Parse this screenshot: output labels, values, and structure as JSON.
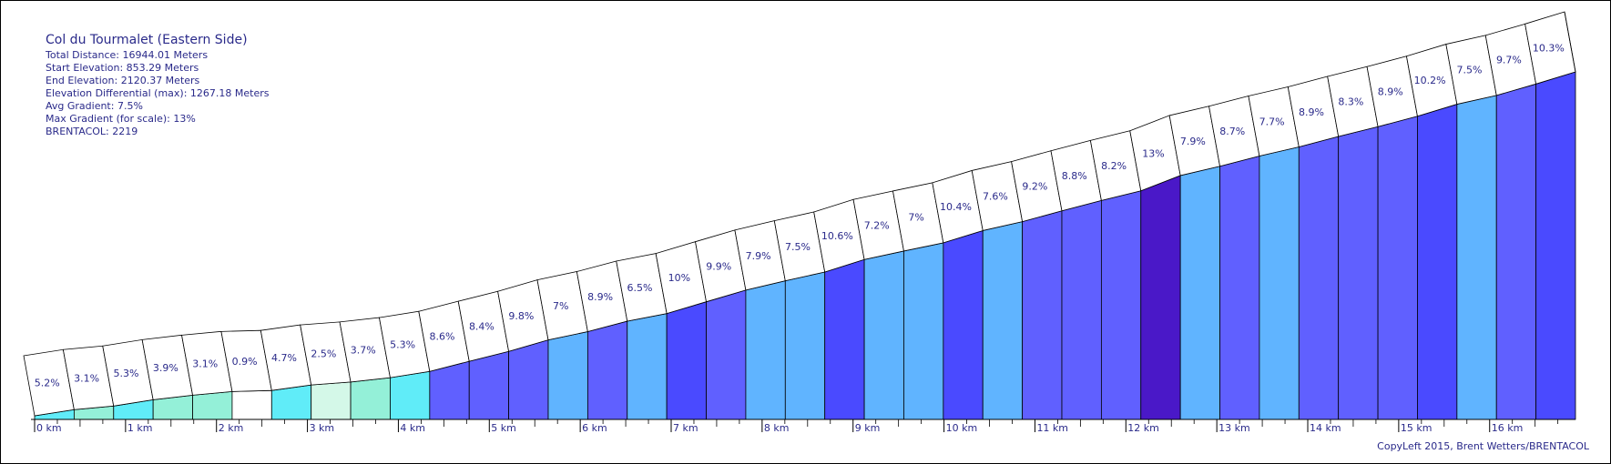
{
  "info": {
    "title": "Col du Tourmalet (Eastern Side)",
    "lines": [
      "Total Distance: 16944.01 Meters",
      "Start Elevation: 853.29 Meters",
      "End Elevation: 2120.37 Meters",
      "Elevation Differential (max): 1267.18 Meters",
      "Avg Gradient: 7.5%",
      "Max Gradient (for scale): 13%",
      "BRENTACOL: 2219"
    ]
  },
  "copyleft": "CopyLeft 2015, Brent Wetters/BRENTACOL",
  "chart_data": {
    "type": "area",
    "title": "Col du Tourmalet (Eastern Side)",
    "xlabel": "",
    "ylabel": "",
    "segment_length_km": 0.43,
    "total_distance_m": 16944.01,
    "start_elevation_m": 853.29,
    "end_elevation_m": 2120.37,
    "x_ticks": [
      "0 km",
      "1 km",
      "2 km",
      "3 km",
      "4 km",
      "5 km",
      "6 km",
      "7 km",
      "8 km",
      "9 km",
      "10 km",
      "11 km",
      "12 km",
      "13 km",
      "14 km",
      "15 km",
      "16 km"
    ],
    "gradients": [
      5.2,
      3.1,
      5.3,
      3.9,
      3.1,
      0.9,
      4.7,
      2.5,
      3.7,
      5.3,
      8.6,
      8.4,
      9.8,
      7,
      8.9,
      6.5,
      10,
      9.9,
      7.9,
      7.5,
      10.6,
      7.2,
      7,
      10.4,
      7.6,
      9.2,
      8.8,
      8.2,
      13,
      7.9,
      8.7,
      7.7,
      8.9,
      8.3,
      8.9,
      10.2,
      7.5,
      9.7,
      10.3
    ],
    "gradient_labels": [
      "5.2%",
      "3.1%",
      "5.3%",
      "3.9%",
      "3.1%",
      "0.9%",
      "4.7%",
      "2.5%",
      "3.7%",
      "5.3%",
      "8.6%",
      "8.4%",
      "9.8%",
      "7%",
      "8.9%",
      "6.5%",
      "10%",
      "9.9%",
      "7.9%",
      "7.5%",
      "10.6%",
      "7.2%",
      "7%",
      "10.4%",
      "7.6%",
      "9.2%",
      "8.8%",
      "8.2%",
      "13%",
      "7.9%",
      "8.7%",
      "7.7%",
      "8.9%",
      "8.3%",
      "8.9%",
      "10.2%",
      "7.5%",
      "9.7%",
      "10.3%"
    ],
    "color_scale": [
      {
        "max": 2,
        "color": "#ffffff"
      },
      {
        "max": 3,
        "color": "#d4f8e8"
      },
      {
        "max": 4.5,
        "color": "#94f0d8"
      },
      {
        "max": 6,
        "color": "#60ecf8"
      },
      {
        "max": 8,
        "color": "#60b4ff"
      },
      {
        "max": 10,
        "color": "#6060ff"
      },
      {
        "max": 12,
        "color": "#4a4aff"
      },
      {
        "max": 99,
        "color": "#4a18c8"
      }
    ],
    "line_color": "#000000",
    "label_color": "#2a2a8a"
  }
}
